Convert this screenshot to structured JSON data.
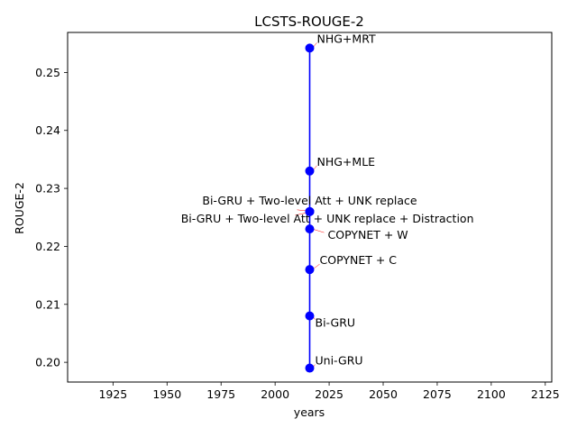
{
  "chart_data": {
    "type": "line",
    "title": "LCSTS-ROUGE-2",
    "xlabel": "years",
    "ylabel": "ROUGE-2",
    "xlim": [
      1904,
      2128
    ],
    "ylim": [
      0.1966,
      0.2569
    ],
    "xticks": [
      1925,
      1950,
      1975,
      2000,
      2025,
      2050,
      2075,
      2100,
      2125
    ],
    "yticks": [
      0.2,
      0.21,
      0.22,
      0.23,
      0.24,
      0.25
    ],
    "grid": false,
    "line_color": "#0000ff",
    "marker_color": "#0000ff",
    "arrow_color": "#ff0000",
    "series": [
      {
        "x": [
          2016,
          2016,
          2016,
          2016,
          2016,
          2016,
          2016,
          2016
        ],
        "y": [
          0.199,
          0.208,
          0.216,
          0.223,
          0.226,
          0.226,
          0.233,
          0.2542
        ]
      }
    ],
    "annotations": [
      {
        "text": "Uni-GRU",
        "x": 2016,
        "y": 0.199
      },
      {
        "text": "Bi-GRU",
        "x": 2016,
        "y": 0.208
      },
      {
        "text": "COPYNET + C",
        "x": 2016,
        "y": 0.216
      },
      {
        "text": "COPYNET + W",
        "x": 2016,
        "y": 0.223
      },
      {
        "text": "Bi-GRU + Two-level Att + UNK replace + Distraction",
        "x": 2016,
        "y": 0.226
      },
      {
        "text": "Bi-GRU + Two-level Att + UNK replace",
        "x": 2016,
        "y": 0.226
      },
      {
        "text": "NHG+MLE",
        "x": 2016,
        "y": 0.233
      },
      {
        "text": "NHG+MRT",
        "x": 2016,
        "y": 0.2542
      }
    ]
  }
}
